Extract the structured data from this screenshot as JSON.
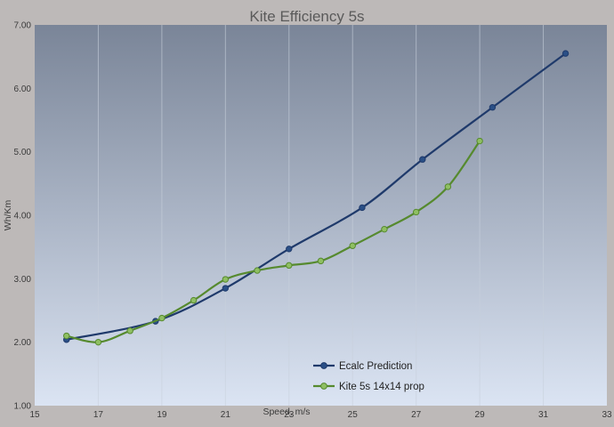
{
  "chart_data": {
    "type": "line",
    "title": "Kite Efficiency 5s",
    "xlabel": "Speed, m/s",
    "ylabel": "Wh/Km",
    "xlim": [
      15,
      33
    ],
    "ylim": [
      1.0,
      7.0
    ],
    "x_ticks": [
      "15",
      "17",
      "19",
      "21",
      "23",
      "25",
      "27",
      "29",
      "31",
      "33"
    ],
    "y_ticks": [
      "1.00",
      "2.00",
      "3.00",
      "4.00",
      "5.00",
      "6.00",
      "7.00"
    ],
    "grid": "vertical",
    "legend_position": "bottom-right",
    "series": [
      {
        "name": "Ecalc Prediction",
        "color": "#1f3a6b",
        "x": [
          16,
          18.8,
          21,
          23,
          25.3,
          27.2,
          29.4,
          31.7
        ],
        "y": [
          2.04,
          2.33,
          2.85,
          3.47,
          4.12,
          4.88,
          5.7,
          6.55
        ]
      },
      {
        "name": "Kite 5s 14x14 prop",
        "color": "#568a2e",
        "x": [
          16,
          17,
          18,
          19,
          20,
          21,
          22,
          23,
          24,
          25,
          26,
          27,
          28,
          29
        ],
        "y": [
          2.1,
          2.0,
          2.18,
          2.38,
          2.66,
          2.99,
          3.13,
          3.21,
          3.28,
          3.52,
          3.78,
          4.05,
          4.45,
          5.17
        ]
      }
    ]
  }
}
